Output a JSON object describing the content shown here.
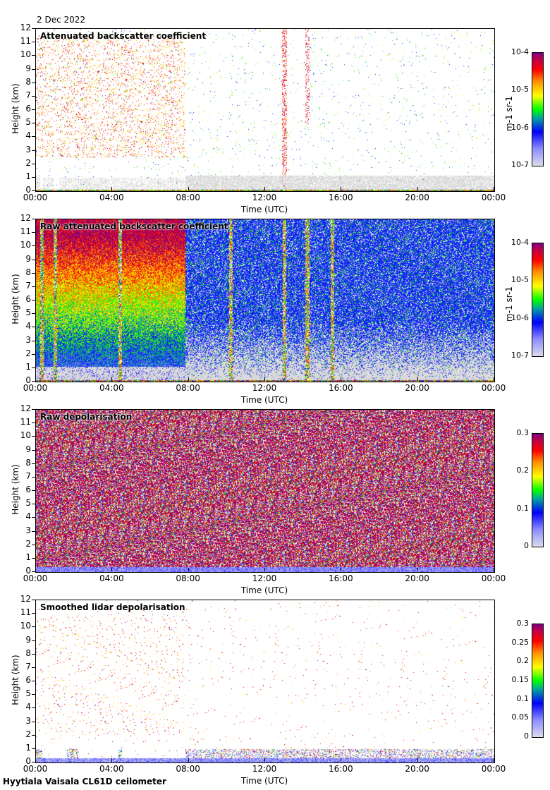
{
  "date": "2 Dec 2022",
  "footer": "Hyytiala Vaisala CL61D ceilometer",
  "colors": {
    "colormap": [
      "#dcdceb",
      "#8c8cff",
      "#0000ff",
      "#00a0a0",
      "#00ff00",
      "#ffff00",
      "#ff8c00",
      "#ff0000",
      "#c8003c",
      "#800080"
    ],
    "no_signal": "#d9d9d9"
  },
  "chart_data": [
    {
      "type": "heatmap",
      "title": "Attenuated backscatter coefficient",
      "xlabel": "Time (UTC)",
      "ylabel": "Height (km)",
      "xticks": [
        "00:00",
        "04:00",
        "08:00",
        "12:00",
        "16:00",
        "20:00",
        "00:00"
      ],
      "yticks": [
        "0",
        "1",
        "2",
        "3",
        "4",
        "5",
        "6",
        "7",
        "8",
        "9",
        "10",
        "11",
        "12"
      ],
      "ylim": [
        0,
        12
      ],
      "xlim_hours": [
        0,
        24
      ],
      "colorbar": {
        "scale": "log",
        "ticks": [
          "10-7",
          "10-6",
          "10-5",
          "10-4"
        ],
        "label": "m-1 sr-1",
        "range": [
          1e-07,
          0.0001
        ]
      },
      "features": {
        "high_signal_hours": [
          0,
          7.8
        ],
        "high_signal_height_km": [
          3,
          11
        ],
        "noise_below_km_after_8h": 1.2
      }
    },
    {
      "type": "heatmap",
      "title": "Raw attenuated backscatter coefficient",
      "xlabel": "Time (UTC)",
      "ylabel": "Height (km)",
      "xticks": [
        "00:00",
        "04:00",
        "08:00",
        "12:00",
        "16:00",
        "20:00",
        "00:00"
      ],
      "yticks": [
        "0",
        "1",
        "2",
        "3",
        "4",
        "5",
        "6",
        "7",
        "8",
        "9",
        "10",
        "11",
        "12"
      ],
      "ylim": [
        0,
        12
      ],
      "xlim_hours": [
        0,
        24
      ],
      "colorbar": {
        "scale": "log",
        "ticks": [
          "10-7",
          "10-6",
          "10-5",
          "10-4"
        ],
        "label": "m-1 sr-1",
        "range": [
          1e-07,
          0.0001
        ]
      },
      "features": {
        "high_signal_hours": [
          0,
          7.8
        ],
        "stripes_hours": [
          0.3,
          1.0,
          4.4,
          10.2,
          13.0,
          14.2,
          15.5
        ]
      }
    },
    {
      "type": "heatmap",
      "title": "Raw depolarisation",
      "xlabel": "Time (UTC)",
      "ylabel": "Height (km)",
      "xticks": [
        "00:00",
        "04:00",
        "08:00",
        "12:00",
        "16:00",
        "20:00",
        "00:00"
      ],
      "yticks": [
        "0",
        "1",
        "2",
        "3",
        "4",
        "5",
        "6",
        "7",
        "8",
        "9",
        "10",
        "11",
        "12"
      ],
      "ylim": [
        0,
        12
      ],
      "xlim_hours": [
        0,
        24
      ],
      "colorbar": {
        "scale": "linear",
        "ticks": [
          "0",
          "0.1",
          "0.2",
          "0.3"
        ],
        "label": "",
        "range": [
          0,
          0.3
        ]
      }
    },
    {
      "type": "heatmap",
      "title": "Smoothed lidar depolarisation",
      "xlabel": "Time (UTC)",
      "ylabel": "Height (km)",
      "xticks": [
        "00:00",
        "04:00",
        "08:00",
        "12:00",
        "16:00",
        "20:00",
        "00:00"
      ],
      "yticks": [
        "0",
        "1",
        "2",
        "3",
        "4",
        "5",
        "6",
        "7",
        "8",
        "9",
        "10",
        "11",
        "12"
      ],
      "ylim": [
        0,
        12
      ],
      "xlim_hours": [
        0,
        24
      ],
      "colorbar": {
        "scale": "linear",
        "ticks": [
          "0",
          "0.05",
          "0.1",
          "0.15",
          "0.2",
          "0.25",
          "0.3"
        ],
        "label": "",
        "range": [
          0,
          0.3
        ]
      }
    }
  ]
}
